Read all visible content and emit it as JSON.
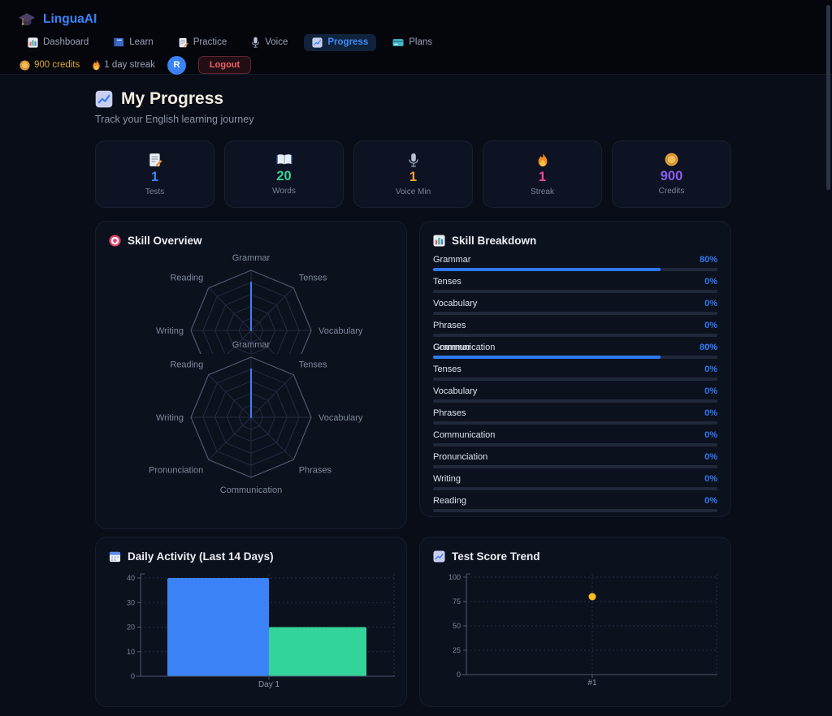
{
  "app": {
    "name": "LinguaAI",
    "logo_icon": "graduation-cap-icon"
  },
  "nav": {
    "items": [
      {
        "icon": "bar-chart-icon",
        "label": "Dashboard",
        "active": false
      },
      {
        "icon": "book-icon",
        "label": "Learn",
        "active": false
      },
      {
        "icon": "memo-pencil-icon",
        "label": "Practice",
        "active": false
      },
      {
        "icon": "microphone-icon",
        "label": "Voice",
        "active": false
      },
      {
        "icon": "chart-up-icon",
        "label": "Progress",
        "active": true
      },
      {
        "icon": "credit-card-icon",
        "label": "Plans",
        "active": false
      }
    ]
  },
  "userbar": {
    "credits": "900 credits",
    "credits_icon": "coin-icon",
    "streak": "1 day streak",
    "streak_icon": "flame-icon",
    "avatar": "R",
    "logout": "Logout"
  },
  "page": {
    "title": "My Progress",
    "title_icon": "chart-up-icon",
    "subtitle": "Track your English learning journey"
  },
  "stats": [
    {
      "icon": "memo-pencil-icon",
      "value": "1",
      "label": "Tests",
      "color": "#3b82f6"
    },
    {
      "icon": "open-book-icon",
      "value": "20",
      "label": "Words",
      "color": "#34d399"
    },
    {
      "icon": "microphone-icon",
      "value": "1",
      "label": "Voice Min",
      "color": "#f0a32a"
    },
    {
      "icon": "flame-icon",
      "value": "1",
      "label": "Streak",
      "color": "#ec4899"
    },
    {
      "icon": "coin-icon",
      "value": "900",
      "label": "Credits",
      "color": "#8b5cf6"
    }
  ],
  "panels": {
    "overview_title": "Skill Overview",
    "overview_icon": "target-icon",
    "breakdown_title": "Skill Breakdown",
    "breakdown_icon": "bar-chart-icon",
    "activity_title": "Daily Activity (Last 14 Days)",
    "activity_icon": "calendar-icon",
    "trend_title": "Test Score Trend",
    "trend_icon": "chart-up-icon"
  },
  "chart_data": [
    {
      "id": "skill-radar",
      "type": "radar",
      "title": "Skill Overview",
      "axes": [
        "Grammar",
        "Tenses",
        "Vocabulary",
        "Phrases",
        "Communication",
        "Pronunciation",
        "Writing",
        "Reading"
      ],
      "series": [
        {
          "name": "Skills",
          "values": [
            80,
            0,
            0,
            0,
            0,
            0,
            0,
            0
          ]
        }
      ],
      "scale_max": 100,
      "accent": "#3b82f6",
      "note": "chart rendered twice in source UI; first copy clipped at mid-height, second copy overlaps it"
    },
    {
      "id": "skill-breakdown",
      "type": "bar",
      "title": "Skill Breakdown",
      "accent": "#2f7af0",
      "list1": [
        {
          "label": "Grammar",
          "pct": 80,
          "pct_label": "80%"
        },
        {
          "label": "Tenses",
          "pct": 0,
          "pct_label": "0%"
        },
        {
          "label": "Vocabulary",
          "pct": 0,
          "pct_label": "0%"
        },
        {
          "label": "Phrases",
          "pct": 0,
          "pct_label": "0%"
        },
        {
          "label": "Communication",
          "pct": 0,
          "pct_label": "0%"
        }
      ],
      "list2": [
        {
          "label": "Grammar",
          "pct": 80,
          "pct_label": "80%"
        },
        {
          "label": "Tenses",
          "pct": 0,
          "pct_label": "0%"
        },
        {
          "label": "Vocabulary",
          "pct": 0,
          "pct_label": "0%"
        },
        {
          "label": "Phrases",
          "pct": 0,
          "pct_label": "0%"
        },
        {
          "label": "Communication",
          "pct": 0,
          "pct_label": "0%"
        },
        {
          "label": "Pronunciation",
          "pct": 0,
          "pct_label": "0%"
        },
        {
          "label": "Writing",
          "pct": 0,
          "pct_label": "0%"
        },
        {
          "label": "Reading",
          "pct": 0,
          "pct_label": "0%"
        }
      ],
      "note": "list2 overlaps the last row of list1 in the source UI (Grammar 80% drawn over Communication 0%)"
    },
    {
      "id": "daily-activity",
      "type": "bar",
      "title": "Daily Activity (Last 14 Days)",
      "categories": [
        "Day 1"
      ],
      "series": [
        {
          "name": "series-blue",
          "color": "#3b82f6",
          "values": [
            40
          ]
        },
        {
          "name": "series-green",
          "color": "#34d399",
          "values": [
            20
          ]
        }
      ],
      "yticks": [
        0,
        10,
        20,
        30,
        40
      ],
      "ylim": [
        0,
        40
      ],
      "grid": "dotted",
      "legend": "none"
    },
    {
      "id": "test-score-trend",
      "type": "scatter",
      "title": "Test Score Trend",
      "x": [
        "#1"
      ],
      "values": [
        80
      ],
      "yticks": [
        0,
        25,
        50,
        75,
        100
      ],
      "ylim": [
        0,
        100
      ],
      "point_color": "#fbbf24",
      "grid": "dotted",
      "legend": "none"
    }
  ]
}
